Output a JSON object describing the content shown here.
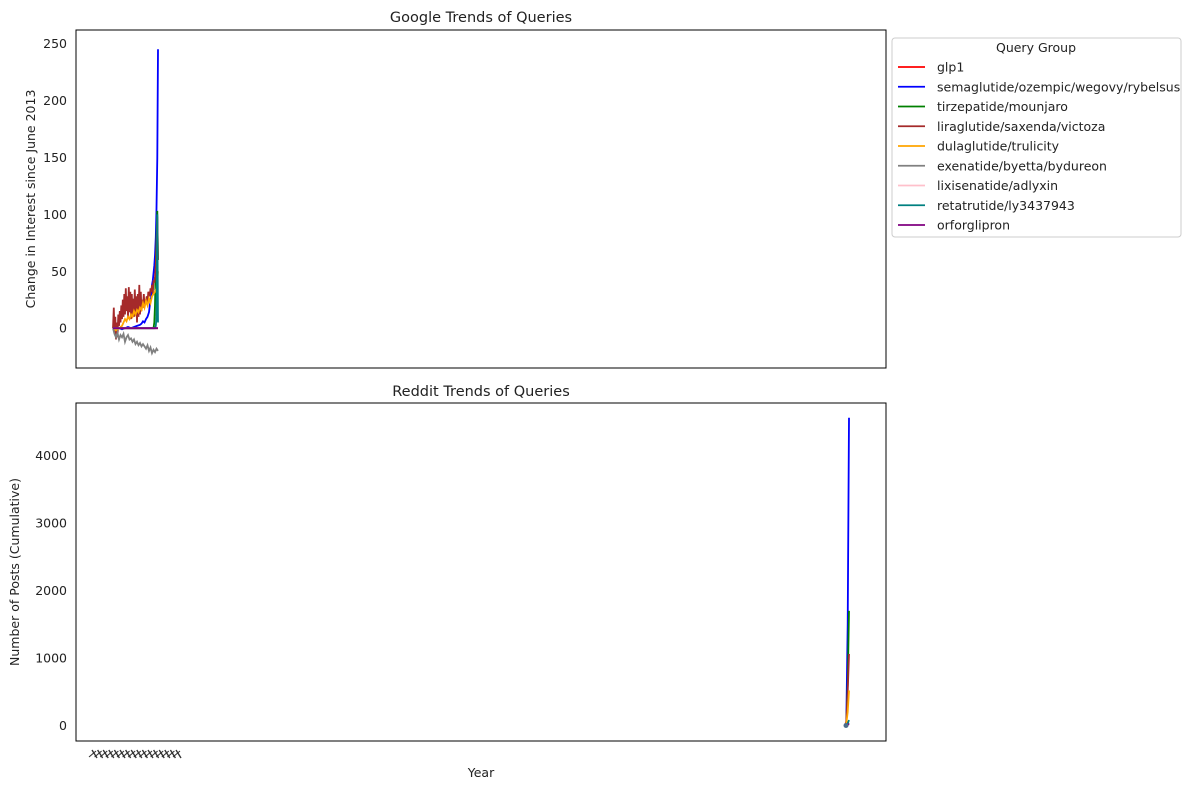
{
  "chart_data": [
    {
      "type": "line",
      "title": "Google Trends of Queries",
      "xlabel": "",
      "ylabel": "Change in Interest since June 2013",
      "ylim": [
        -35,
        262
      ],
      "yticks": [
        0,
        50,
        100,
        150,
        200,
        250
      ],
      "grid": false,
      "legend": {
        "title": "Query Group",
        "placement": "outside-right",
        "entries": [
          {
            "name": "glp1",
            "color": "#ff0000"
          },
          {
            "name": "semaglutide/ozempic/wegovy/rybelsus",
            "color": "#0000ff"
          },
          {
            "name": "tirzepatide/mounjaro",
            "color": "#008000"
          },
          {
            "name": "liraglutide/saxenda/victoza",
            "color": "#a52a2a"
          },
          {
            "name": "dulaglutide/trulicity",
            "color": "#ffa500"
          },
          {
            "name": "exenatide/byetta/bydureon",
            "color": "#808080"
          },
          {
            "name": "lixisenatide/adlyxin",
            "color": "#ffc0cb"
          },
          {
            "name": "retatrutide/ly3437943",
            "color": "#008080"
          },
          {
            "name": "orforglipron",
            "color": "#800080"
          }
        ]
      },
      "series": [
        {
          "name": "glp1",
          "color": "#ff0000",
          "x": [
            0,
            30
          ],
          "y": [
            0,
            0
          ]
        },
        {
          "name": "semaglutide/ozempic/wegovy/rybelsus",
          "color": "#0000ff",
          "x": [
            0,
            2,
            4,
            6,
            8,
            10,
            12,
            14,
            16,
            18,
            19,
            20,
            21,
            22,
            23,
            24,
            24.5,
            25,
            25.5,
            26,
            26.5,
            27,
            27.5,
            28,
            28.5,
            29,
            29.5,
            30
          ],
          "y": [
            0,
            0,
            0,
            -1,
            0,
            1,
            0,
            1,
            2,
            3,
            4,
            6,
            5,
            8,
            10,
            14,
            20,
            24,
            28,
            38,
            42,
            48,
            55,
            64,
            80,
            105,
            150,
            245
          ]
        },
        {
          "name": "tirzepatide/mounjaro",
          "color": "#008000",
          "x": [
            0,
            26,
            27,
            27.5,
            28,
            28.5,
            29,
            29.5,
            30
          ],
          "y": [
            0,
            0,
            0,
            5,
            20,
            55,
            80,
            103,
            60
          ]
        },
        {
          "name": "liraglutide/saxenda/victoza",
          "color": "#a52a2a",
          "x": [
            0,
            0.5,
            1,
            1.5,
            2,
            2.5,
            3,
            3.5,
            4,
            4.5,
            5,
            5.5,
            6,
            6.5,
            7,
            7.5,
            8,
            8.5,
            9,
            9.5,
            10,
            10.5,
            11,
            11.5,
            12,
            12.5,
            13,
            13.5,
            14,
            14.5,
            15,
            15.5,
            16,
            16.5,
            17,
            17.5,
            18,
            18.5,
            19,
            19.5,
            20,
            20.5,
            21,
            21.5,
            22,
            22.5,
            23,
            23.5,
            24,
            24.5,
            25,
            25.5,
            26,
            26.5,
            27,
            27.5,
            28,
            28.5,
            29,
            29.5,
            30
          ],
          "y": [
            0,
            18,
            -5,
            10,
            -10,
            5,
            -8,
            12,
            2,
            15,
            5,
            20,
            8,
            25,
            10,
            30,
            12,
            35,
            15,
            28,
            10,
            36,
            14,
            32,
            8,
            30,
            12,
            26,
            10,
            34,
            14,
            28,
            5,
            30,
            10,
            38,
            12,
            32,
            15,
            25,
            18,
            30,
            20,
            22,
            25,
            28,
            22,
            32,
            30,
            28,
            35,
            32,
            38,
            30,
            42,
            40,
            45,
            55,
            70,
            98,
            60
          ]
        },
        {
          "name": "dulaglutide/trulicity",
          "color": "#ffa500",
          "x": [
            0,
            2,
            4,
            6,
            7,
            8,
            9,
            10,
            11,
            12,
            13,
            14,
            15,
            16,
            17,
            18,
            19,
            20,
            21,
            22,
            23,
            24,
            25,
            26,
            27,
            28,
            29,
            29.5,
            30
          ],
          "y": [
            0,
            -2,
            0,
            2,
            5,
            8,
            6,
            10,
            8,
            12,
            10,
            15,
            12,
            16,
            14,
            18,
            16,
            22,
            18,
            24,
            20,
            26,
            22,
            28,
            30,
            32,
            35,
            42,
            50
          ]
        },
        {
          "name": "exenatide/byetta/bydureon",
          "color": "#808080",
          "x": [
            0,
            1,
            2,
            3,
            4,
            5,
            6,
            7,
            8,
            9,
            10,
            11,
            12,
            13,
            14,
            15,
            16,
            17,
            18,
            19,
            20,
            21,
            22,
            23,
            24,
            25,
            26,
            27,
            28,
            29,
            30
          ],
          "y": [
            0,
            -5,
            -8,
            -4,
            -10,
            -6,
            -8,
            -5,
            -12,
            -8,
            -6,
            -10,
            -9,
            -12,
            -10,
            -14,
            -12,
            -15,
            -13,
            -16,
            -14,
            -16,
            -18,
            -15,
            -20,
            -17,
            -22,
            -19,
            -21,
            -18,
            -20
          ]
        },
        {
          "name": "lixisenatide/adlyxin",
          "color": "#ffc0cb",
          "x": [
            0,
            30
          ],
          "y": [
            0,
            0
          ]
        },
        {
          "name": "retatrutide/ly3437943",
          "color": "#008080",
          "x": [
            0,
            27,
            28,
            28.5,
            29,
            29.5,
            30
          ],
          "y": [
            0,
            0,
            0,
            2,
            10,
            100,
            5
          ]
        },
        {
          "name": "orforglipron",
          "color": "#800080",
          "x": [
            0,
            30
          ],
          "y": [
            0,
            0
          ]
        }
      ]
    },
    {
      "type": "line",
      "title": "Reddit Trends of Queries",
      "xlabel": "Year",
      "ylabel": "Number of Posts (Cumulative)",
      "ylim": [
        -230,
        4780
      ],
      "yticks": [
        0,
        1000,
        2000,
        3000,
        4000
      ],
      "grid": false,
      "series": [
        {
          "name": "glp1",
          "color": "#ff0000",
          "x": [
            0,
            1,
            2
          ],
          "y": [
            0,
            5,
            10
          ]
        },
        {
          "name": "semaglutide/ozempic/wegovy/rybelsus",
          "color": "#0000ff",
          "x": [
            0,
            1,
            2,
            3
          ],
          "y": [
            0,
            40,
            1500,
            4560
          ]
        },
        {
          "name": "tirzepatide/mounjaro",
          "color": "#008000",
          "x": [
            0,
            1,
            2,
            3
          ],
          "y": [
            0,
            20,
            600,
            1700
          ]
        },
        {
          "name": "liraglutide/saxenda/victoza",
          "color": "#a52a2a",
          "x": [
            0,
            1,
            2,
            3
          ],
          "y": [
            0,
            60,
            500,
            1060
          ]
        },
        {
          "name": "dulaglutide/trulicity",
          "color": "#ffa500",
          "x": [
            0,
            1,
            2,
            3
          ],
          "y": [
            0,
            30,
            200,
            520
          ]
        },
        {
          "name": "exenatide/byetta/bydureon",
          "color": "#808080",
          "x": [
            0,
            1,
            2,
            3
          ],
          "y": [
            0,
            5,
            20,
            40
          ]
        },
        {
          "name": "lixisenatide/adlyxin",
          "color": "#ffc0cb",
          "x": [
            0,
            1,
            2,
            3
          ],
          "y": [
            0,
            2,
            5,
            10
          ]
        },
        {
          "name": "retatrutide/ly3437943",
          "color": "#008080",
          "x": [
            0,
            1,
            2,
            3
          ],
          "y": [
            0,
            5,
            30,
            80
          ]
        },
        {
          "name": "orforglipron",
          "color": "#800080",
          "x": [
            0,
            1,
            2,
            3
          ],
          "y": [
            0,
            2,
            10,
            25
          ]
        }
      ]
    }
  ]
}
